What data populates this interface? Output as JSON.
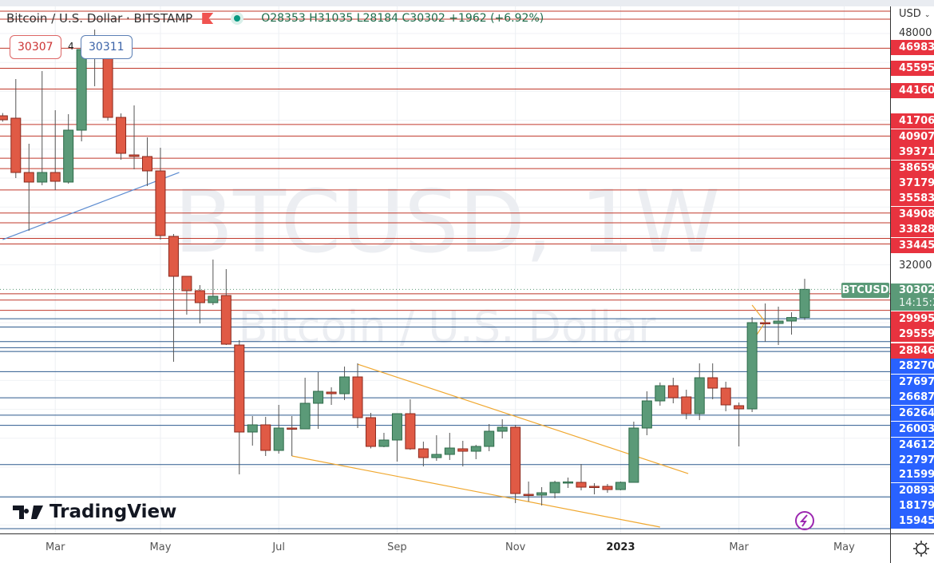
{
  "header": {
    "symbol_title": "Bitcoin / U.S. Dollar · BITSTAMP",
    "ohlc": "O28353 H31035 L28184 C30302 +1962 (+6.92%)"
  },
  "measure_labels": [
    "30307",
    "4",
    "30311"
  ],
  "currency_selector": "USD",
  "watermark": {
    "line1": "BTCUSD, 1W",
    "line2": "Bitcoin / U.S. Dollar"
  },
  "symbol_tag": "BTCUSD",
  "last_price": "30302",
  "countdown": "14:15:2",
  "axis_tick": "32000",
  "axis_tick_top": "48000",
  "logo": "TradingView",
  "colors": {
    "up": "#5b9a78",
    "down": "#e05a45",
    "resistance": "#c0392b",
    "support": "#2d5a8e",
    "trend_blue": "#5b8bd0",
    "trend_orange": "#f0a830"
  },
  "chart_data": {
    "type": "candlestick",
    "interval": "1W",
    "y_scale": "linear",
    "x_ticks": [
      {
        "label": "Mar",
        "date": "2022-03-07"
      },
      {
        "label": "May",
        "date": "2022-05-02"
      },
      {
        "label": "Jul",
        "date": "2022-07-04"
      },
      {
        "label": "Sep",
        "date": "2022-09-05"
      },
      {
        "label": "Nov",
        "date": "2022-11-07"
      },
      {
        "label": "2023",
        "date": "2023-01-02"
      },
      {
        "label": "Mar",
        "date": "2023-03-06"
      },
      {
        "label": "May",
        "date": "2023-05-01"
      }
    ],
    "candles_columns": [
      "date",
      "open",
      "high",
      "low",
      "close"
    ],
    "candles": [
      [
        "2022-02-07",
        42309,
        42500,
        41900,
        42033
      ],
      [
        "2022-02-14",
        42144,
        44851,
        38000,
        38387
      ],
      [
        "2022-02-21",
        38387,
        40376,
        34353,
        37724
      ],
      [
        "2022-02-28",
        37724,
        45403,
        37503,
        38387
      ],
      [
        "2022-03-07",
        38387,
        42696,
        37171,
        37779
      ],
      [
        "2022-03-14",
        37724,
        42420,
        37613,
        41315
      ],
      [
        "2022-03-21",
        41315,
        47669,
        40541,
        46895
      ],
      [
        "2022-03-28",
        46343,
        48276,
        44354,
        46453
      ],
      [
        "2022-04-04",
        46343,
        47006,
        41978,
        42199
      ],
      [
        "2022-04-11",
        42199,
        42475,
        39271,
        39713
      ],
      [
        "2022-04-18",
        39602,
        43028,
        38608,
        39492
      ],
      [
        "2022-04-25",
        39492,
        40818,
        37447,
        38497
      ],
      [
        "2022-05-02",
        38497,
        40099,
        33746,
        34022
      ],
      [
        "2022-05-09",
        33966,
        34132,
        25292,
        31204
      ],
      [
        "2022-05-16",
        31204,
        31204,
        28552,
        30210
      ],
      [
        "2022-05-23",
        30210,
        30596,
        27944,
        29381
      ],
      [
        "2022-05-30",
        29381,
        32364,
        29215,
        29823
      ],
      [
        "2022-06-06",
        29878,
        31701,
        26452,
        26508
      ],
      [
        "2022-06-13",
        26452,
        26784,
        17502,
        20431
      ],
      [
        "2022-06-20",
        20431,
        21536,
        19491,
        20928
      ],
      [
        "2022-06-27",
        20928,
        21480,
        18773,
        19160
      ],
      [
        "2022-07-04",
        19160,
        22309,
        18939,
        20707
      ],
      [
        "2022-07-11",
        20707,
        21536,
        18773,
        20651
      ],
      [
        "2022-07-18",
        20651,
        24187,
        20651,
        22420
      ],
      [
        "2022-07-25",
        22420,
        24574,
        20651,
        23248
      ],
      [
        "2022-08-01",
        23193,
        23525,
        22309,
        23082
      ],
      [
        "2022-08-08",
        23082,
        24960,
        22641,
        24243
      ],
      [
        "2022-08-15",
        24243,
        25181,
        20707,
        21425
      ],
      [
        "2022-08-22",
        21425,
        21757,
        19300,
        19436
      ],
      [
        "2022-08-29",
        19436,
        20375,
        19380,
        19878
      ],
      [
        "2022-09-05",
        19878,
        21701,
        18386,
        21701
      ],
      [
        "2022-09-12",
        21701,
        22696,
        19200,
        19270
      ],
      [
        "2022-09-19",
        19270,
        19767,
        18055,
        18662
      ],
      [
        "2022-09-26",
        18662,
        20209,
        18441,
        18883
      ],
      [
        "2022-10-03",
        18883,
        20375,
        18497,
        19325
      ],
      [
        "2022-10-10",
        19270,
        19823,
        18055,
        19104
      ],
      [
        "2022-10-17",
        19104,
        19546,
        18552,
        19436
      ],
      [
        "2022-10-24",
        19436,
        20983,
        19104,
        20486
      ],
      [
        "2022-10-31",
        20486,
        21315,
        19988,
        20762
      ],
      [
        "2022-11-07",
        20762,
        20928,
        15514,
        16176
      ],
      [
        "2022-11-14",
        16121,
        17005,
        15624,
        16066
      ],
      [
        "2022-11-21",
        16066,
        16618,
        15348,
        16231
      ],
      [
        "2022-11-28",
        16231,
        17060,
        15845,
        16950
      ],
      [
        "2022-12-05",
        16950,
        17281,
        16563,
        16980
      ],
      [
        "2022-12-12",
        16950,
        18220,
        16397,
        16618
      ],
      [
        "2022-12-19",
        16673,
        16894,
        16121,
        16618
      ],
      [
        "2022-12-26",
        16673,
        16839,
        16231,
        16452
      ],
      [
        "2023-01-02",
        16452,
        17005,
        16397,
        16950
      ],
      [
        "2023-01-09",
        16950,
        21149,
        16950,
        20707
      ],
      [
        "2023-01-16",
        20707,
        23248,
        20209,
        22585
      ],
      [
        "2023-01-23",
        22585,
        23856,
        22254,
        23635
      ],
      [
        "2023-01-30",
        23635,
        24187,
        22420,
        22806
      ],
      [
        "2023-02-06",
        22861,
        23359,
        21315,
        21701
      ],
      [
        "2023-02-13",
        21701,
        25181,
        21259,
        24187
      ],
      [
        "2023-02-20",
        24187,
        25181,
        22696,
        23469
      ],
      [
        "2023-02-27",
        23469,
        23911,
        21867,
        22309
      ],
      [
        "2023-03-06",
        22254,
        22475,
        19436,
        22033
      ],
      [
        "2023-03-13",
        22033,
        28386,
        21812,
        27999
      ],
      [
        "2023-03-20",
        27999,
        29326,
        26673,
        27944
      ],
      [
        "2023-03-27",
        27944,
        29105,
        26452,
        28110
      ],
      [
        "2023-04-03",
        28110,
        28718,
        27171,
        28353
      ],
      [
        "2023-04-10",
        28353,
        31035,
        28184,
        30302
      ]
    ],
    "resistance_levels": [
      "46983",
      "45595",
      "44160",
      "41706",
      "40907",
      "39371",
      "38659",
      "37179",
      "35583",
      "34908",
      "33828",
      "33445",
      "29995",
      "29559",
      "28846"
    ],
    "support_levels": [
      "28270",
      "27697",
      "26687",
      "26264",
      "26003",
      "24612",
      "22797",
      "21599",
      "20893",
      "18179",
      "15945"
    ],
    "trendlines": [
      {
        "color": "blue",
        "points": [
          [
            "2022-02-07",
            33745
          ],
          [
            "2022-05-12",
            38387
          ]
        ]
      },
      {
        "color": "orange",
        "points": [
          [
            "2022-08-15",
            25126
          ],
          [
            "2023-02-07",
            17556
          ]
        ]
      },
      {
        "color": "orange",
        "points": [
          [
            "2022-07-11",
            18773
          ],
          [
            "2023-01-23",
            13855
          ]
        ]
      },
      {
        "color": "orange",
        "points": [
          [
            "2023-03-13",
            29215
          ],
          [
            "2023-03-20",
            28055
          ],
          [
            "2023-03-13",
            26673
          ]
        ]
      }
    ],
    "last_close": 30302
  }
}
